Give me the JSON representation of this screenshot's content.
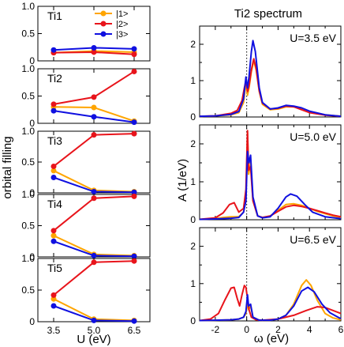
{
  "chart_data": [
    {
      "type": "line",
      "panel": "Ti1",
      "x": [
        3.5,
        5.0,
        6.5
      ],
      "ylim": [
        0,
        1.0
      ],
      "yticks": [
        "0",
        "0.5",
        "1.0"
      ],
      "series": [
        {
          "name": "|1>",
          "color": "#ffa500",
          "values": [
            0.15,
            0.18,
            0.16
          ]
        },
        {
          "name": "|2>",
          "color": "#e8141b",
          "values": [
            0.15,
            0.16,
            0.12
          ]
        },
        {
          "name": "|3>",
          "color": "#1010e0",
          "values": [
            0.2,
            0.24,
            0.22
          ]
        }
      ]
    },
    {
      "type": "line",
      "panel": "Ti2",
      "x": [
        3.5,
        5.0,
        6.5
      ],
      "ylim": [
        0,
        1.0
      ],
      "yticks": [
        "0",
        "0.5",
        "1.0"
      ],
      "series": [
        {
          "name": "|1>",
          "color": "#ffa500",
          "values": [
            0.3,
            0.29,
            0.04
          ]
        },
        {
          "name": "|2>",
          "color": "#e8141b",
          "values": [
            0.35,
            0.48,
            0.95
          ]
        },
        {
          "name": "|3>",
          "color": "#1010e0",
          "values": [
            0.23,
            0.12,
            0.02
          ]
        }
      ]
    },
    {
      "type": "line",
      "panel": "Ti3",
      "x": [
        3.5,
        5.0,
        6.5
      ],
      "ylim": [
        0,
        1.0
      ],
      "yticks": [
        "0",
        "0.5",
        "1.0"
      ],
      "series": [
        {
          "name": "|1>",
          "color": "#ffa500",
          "values": [
            0.36,
            0.04,
            0.02
          ]
        },
        {
          "name": "|2>",
          "color": "#e8141b",
          "values": [
            0.43,
            0.94,
            0.96
          ]
        },
        {
          "name": "|3>",
          "color": "#1010e0",
          "values": [
            0.25,
            0.02,
            0.01
          ]
        }
      ]
    },
    {
      "type": "line",
      "panel": "Ti4",
      "x": [
        3.5,
        5.0,
        6.5
      ],
      "ylim": [
        0,
        1.0
      ],
      "yticks": [
        "0",
        "0.5",
        "1.0"
      ],
      "series": [
        {
          "name": "|1>",
          "color": "#ffa500",
          "values": [
            0.34,
            0.04,
            0.02
          ]
        },
        {
          "name": "|2>",
          "color": "#e8141b",
          "values": [
            0.42,
            0.94,
            0.97
          ]
        },
        {
          "name": "|3>",
          "color": "#1010e0",
          "values": [
            0.25,
            0.02,
            0.01
          ]
        }
      ]
    },
    {
      "type": "line",
      "panel": "Ti5",
      "x": [
        3.5,
        5.0,
        6.5
      ],
      "ylim": [
        0,
        1.0
      ],
      "yticks": [
        "0",
        "0.5",
        "1.0"
      ],
      "series": [
        {
          "name": "|1>",
          "color": "#ffa500",
          "values": [
            0.36,
            0.04,
            0.02
          ]
        },
        {
          "name": "|2>",
          "color": "#e8141b",
          "values": [
            0.42,
            0.94,
            0.96
          ]
        },
        {
          "name": "|3>",
          "color": "#1010e0",
          "values": [
            0.25,
            0.02,
            0.01
          ]
        }
      ]
    },
    {
      "type": "line",
      "title": "Ti2 spectrum",
      "panel": "U=3.5 eV",
      "xlim": [
        -3,
        6
      ],
      "ylim": [
        0,
        2.5
      ],
      "yticks": [
        "0",
        "1",
        "2"
      ],
      "fermi_line": 0,
      "series": [
        {
          "color": "#ffa500",
          "points": [
            [
              -3,
              0.02
            ],
            [
              -2,
              0.03
            ],
            [
              -1,
              0.06
            ],
            [
              -0.5,
              0.12
            ],
            [
              -0.2,
              0.4
            ],
            [
              -0.05,
              0.95
            ],
            [
              0.05,
              0.6
            ],
            [
              0.15,
              0.8
            ],
            [
              0.3,
              1.25
            ],
            [
              0.45,
              1.55
            ],
            [
              0.6,
              1.3
            ],
            [
              0.8,
              0.7
            ],
            [
              1.0,
              0.35
            ],
            [
              1.5,
              0.2
            ],
            [
              2.0,
              0.22
            ],
            [
              2.5,
              0.28
            ],
            [
              3.0,
              0.28
            ],
            [
              3.5,
              0.22
            ],
            [
              4.0,
              0.15
            ],
            [
              5.0,
              0.06
            ],
            [
              6.0,
              0.02
            ]
          ]
        },
        {
          "color": "#e8141b",
          "points": [
            [
              -3,
              0.02
            ],
            [
              -2,
              0.03
            ],
            [
              -1,
              0.1
            ],
            [
              -0.6,
              0.18
            ],
            [
              -0.3,
              0.45
            ],
            [
              -0.15,
              0.8
            ],
            [
              -0.05,
              1.0
            ],
            [
              0.05,
              0.7
            ],
            [
              0.15,
              0.85
            ],
            [
              0.3,
              1.3
            ],
            [
              0.45,
              1.6
            ],
            [
              0.6,
              1.35
            ],
            [
              0.8,
              0.72
            ],
            [
              1.0,
              0.38
            ],
            [
              1.5,
              0.22
            ],
            [
              2.0,
              0.24
            ],
            [
              2.5,
              0.3
            ],
            [
              3.0,
              0.28
            ],
            [
              3.5,
              0.2
            ],
            [
              4.0,
              0.12
            ],
            [
              5.0,
              0.05
            ],
            [
              6.0,
              0.02
            ]
          ]
        },
        {
          "color": "#1010e0",
          "points": [
            [
              -3,
              0.02
            ],
            [
              -2,
              0.03
            ],
            [
              -1,
              0.07
            ],
            [
              -0.5,
              0.15
            ],
            [
              -0.2,
              0.5
            ],
            [
              -0.05,
              1.1
            ],
            [
              0.05,
              0.8
            ],
            [
              0.15,
              1.1
            ],
            [
              0.3,
              1.8
            ],
            [
              0.4,
              2.1
            ],
            [
              0.55,
              1.8
            ],
            [
              0.8,
              0.8
            ],
            [
              1.0,
              0.4
            ],
            [
              1.5,
              0.22
            ],
            [
              2.0,
              0.25
            ],
            [
              2.5,
              0.32
            ],
            [
              3.0,
              0.3
            ],
            [
              3.5,
              0.25
            ],
            [
              4.0,
              0.16
            ],
            [
              5.0,
              0.06
            ],
            [
              6.0,
              0.02
            ]
          ]
        }
      ]
    },
    {
      "type": "line",
      "panel": "U=5.0 eV",
      "xlim": [
        -3,
        6
      ],
      "ylim": [
        0,
        2.5
      ],
      "yticks": [
        "0",
        "1",
        "2"
      ],
      "ylabel": "A (1/eV)",
      "fermi_line": 0,
      "series": [
        {
          "color": "#ffa500",
          "points": [
            [
              -3,
              0.01
            ],
            [
              -2,
              0.03
            ],
            [
              -1.5,
              0.06
            ],
            [
              -1.0,
              0.08
            ],
            [
              -0.5,
              0.08
            ],
            [
              -0.2,
              0.2
            ],
            [
              -0.05,
              0.6
            ],
            [
              0.05,
              2.3
            ],
            [
              0.12,
              1.2
            ],
            [
              0.25,
              1.5
            ],
            [
              0.4,
              0.5
            ],
            [
              0.7,
              0.1
            ],
            [
              1.0,
              0.06
            ],
            [
              1.5,
              0.1
            ],
            [
              2.0,
              0.25
            ],
            [
              2.5,
              0.4
            ],
            [
              3.0,
              0.42
            ],
            [
              3.5,
              0.38
            ],
            [
              4.0,
              0.3
            ],
            [
              4.5,
              0.22
            ],
            [
              5.0,
              0.16
            ],
            [
              5.5,
              0.1
            ],
            [
              6.0,
              0.06
            ]
          ]
        },
        {
          "color": "#e8141b",
          "points": [
            [
              -3,
              0.01
            ],
            [
              -2,
              0.05
            ],
            [
              -1.5,
              0.18
            ],
            [
              -1.1,
              0.4
            ],
            [
              -0.8,
              0.45
            ],
            [
              -0.5,
              0.2
            ],
            [
              -0.2,
              0.3
            ],
            [
              -0.05,
              0.8
            ],
            [
              0.05,
              2.35
            ],
            [
              0.12,
              1.3
            ],
            [
              0.25,
              1.4
            ],
            [
              0.4,
              0.5
            ],
            [
              0.7,
              0.1
            ],
            [
              1.0,
              0.06
            ],
            [
              1.5,
              0.1
            ],
            [
              2.0,
              0.22
            ],
            [
              2.5,
              0.34
            ],
            [
              3.0,
              0.38
            ],
            [
              3.5,
              0.35
            ],
            [
              4.0,
              0.3
            ],
            [
              4.5,
              0.24
            ],
            [
              5.0,
              0.18
            ],
            [
              5.5,
              0.12
            ],
            [
              6.0,
              0.08
            ]
          ]
        },
        {
          "color": "#1010e0",
          "points": [
            [
              -3,
              0.01
            ],
            [
              -2,
              0.02
            ],
            [
              -1.0,
              0.04
            ],
            [
              -0.5,
              0.06
            ],
            [
              -0.2,
              0.2
            ],
            [
              -0.05,
              0.5
            ],
            [
              0.05,
              1.8
            ],
            [
              0.15,
              1.5
            ],
            [
              0.25,
              1.7
            ],
            [
              0.4,
              0.6
            ],
            [
              0.7,
              0.1
            ],
            [
              1.0,
              0.05
            ],
            [
              1.5,
              0.08
            ],
            [
              2.0,
              0.3
            ],
            [
              2.5,
              0.6
            ],
            [
              2.8,
              0.68
            ],
            [
              3.2,
              0.62
            ],
            [
              3.7,
              0.4
            ],
            [
              4.2,
              0.2
            ],
            [
              5.0,
              0.08
            ],
            [
              6.0,
              0.03
            ]
          ]
        }
      ]
    },
    {
      "type": "line",
      "panel": "U=6.5 eV",
      "xlim": [
        -3,
        6
      ],
      "ylim": [
        0,
        2.5
      ],
      "yticks": [
        "0",
        "1",
        "2"
      ],
      "xticks": [
        "-2",
        "0",
        "2",
        "4",
        "6"
      ],
      "xlabel": "ω (eV)",
      "fermi_line": 0,
      "series": [
        {
          "color": "#ffa500",
          "points": [
            [
              -3,
              0.01
            ],
            [
              -2,
              0.02
            ],
            [
              -1.0,
              0.03
            ],
            [
              -0.5,
              0.05
            ],
            [
              -0.2,
              0.1
            ],
            [
              -0.05,
              0.2
            ],
            [
              0.05,
              0.5
            ],
            [
              0.12,
              0.3
            ],
            [
              0.25,
              0.4
            ],
            [
              0.4,
              0.1
            ],
            [
              0.8,
              0.02
            ],
            [
              1.5,
              0.02
            ],
            [
              2.0,
              0.05
            ],
            [
              2.5,
              0.15
            ],
            [
              3.0,
              0.45
            ],
            [
              3.5,
              0.95
            ],
            [
              3.8,
              1.1
            ],
            [
              4.1,
              0.95
            ],
            [
              4.5,
              0.55
            ],
            [
              5.0,
              0.2
            ],
            [
              5.5,
              0.08
            ],
            [
              6.0,
              0.03
            ]
          ]
        },
        {
          "color": "#e8141b",
          "points": [
            [
              -3,
              0.01
            ],
            [
              -2.3,
              0.05
            ],
            [
              -1.8,
              0.2
            ],
            [
              -1.4,
              0.55
            ],
            [
              -1.0,
              0.88
            ],
            [
              -0.8,
              0.9
            ],
            [
              -0.6,
              0.6
            ],
            [
              -0.45,
              0.4
            ],
            [
              -0.3,
              0.7
            ],
            [
              -0.15,
              0.95
            ],
            [
              -0.05,
              0.9
            ],
            [
              0.05,
              0.6
            ],
            [
              0.15,
              0.3
            ],
            [
              0.3,
              0.1
            ],
            [
              0.6,
              0.03
            ],
            [
              1.0,
              0.02
            ],
            [
              2.0,
              0.05
            ],
            [
              3.0,
              0.15
            ],
            [
              3.8,
              0.28
            ],
            [
              4.5,
              0.38
            ],
            [
              5.0,
              0.36
            ],
            [
              5.5,
              0.28
            ],
            [
              6.0,
              0.2
            ]
          ]
        },
        {
          "color": "#1010e0",
          "points": [
            [
              -3,
              0.01
            ],
            [
              -2,
              0.02
            ],
            [
              -1.0,
              0.03
            ],
            [
              -0.5,
              0.05
            ],
            [
              -0.2,
              0.1
            ],
            [
              -0.05,
              0.25
            ],
            [
              0.05,
              0.7
            ],
            [
              0.12,
              0.4
            ],
            [
              0.25,
              0.45
            ],
            [
              0.4,
              0.1
            ],
            [
              0.8,
              0.02
            ],
            [
              1.5,
              0.02
            ],
            [
              2.0,
              0.05
            ],
            [
              2.5,
              0.15
            ],
            [
              3.0,
              0.4
            ],
            [
              3.5,
              0.8
            ],
            [
              3.9,
              0.9
            ],
            [
              4.3,
              0.78
            ],
            [
              4.8,
              0.45
            ],
            [
              5.3,
              0.22
            ],
            [
              6.0,
              0.06
            ]
          ]
        }
      ]
    }
  ],
  "left": {
    "ylabel": "orbital filling",
    "xlabel": "U (eV)",
    "xticks": [
      "3.5",
      "5.0",
      "6.5"
    ]
  },
  "legend": [
    "|1>",
    "|2>",
    "|3>"
  ]
}
